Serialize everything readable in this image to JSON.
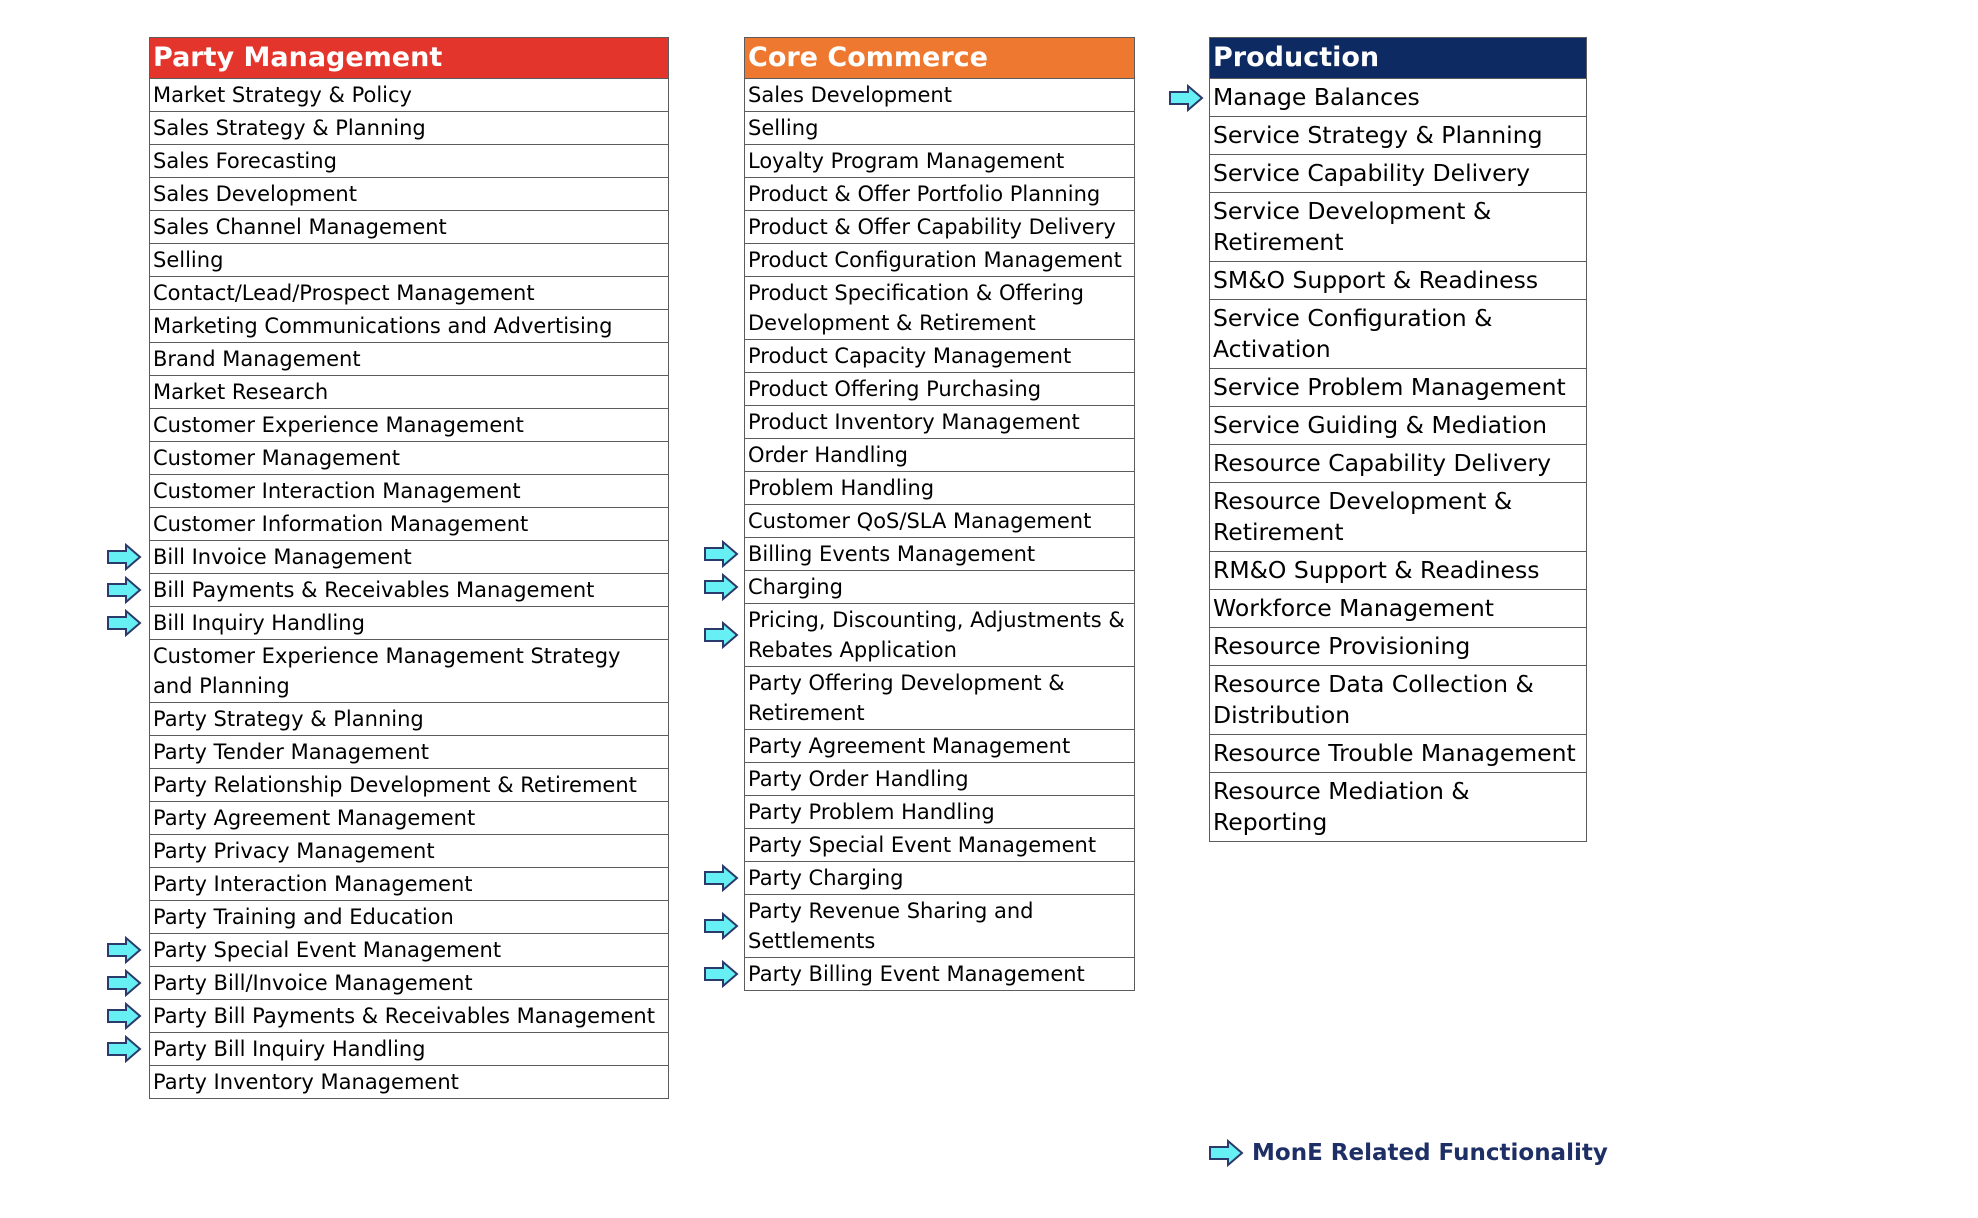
{
  "colors": {
    "party_header": "#e3352b",
    "core_header": "#ef7831",
    "production_header": "#0e2a63",
    "arrow_fill": "#66f0f3",
    "arrow_stroke": "#2b3a6a",
    "legend_text": "#1e2f66"
  },
  "icons": {
    "marker": "right-arrow-icon"
  },
  "panels": [
    {
      "title": "Party Management",
      "items": [
        {
          "label": "Market Strategy & Policy",
          "mone": false
        },
        {
          "label": "Sales Strategy & Planning",
          "mone": false
        },
        {
          "label": "Sales Forecasting",
          "mone": false
        },
        {
          "label": "Sales Development",
          "mone": false
        },
        {
          "label": "Sales Channel Management",
          "mone": false
        },
        {
          "label": "Selling",
          "mone": false
        },
        {
          "label": "Contact/Lead/Prospect Management",
          "mone": false
        },
        {
          "label": "Marketing Communications and Advertising",
          "mone": false
        },
        {
          "label": "Brand Management",
          "mone": false
        },
        {
          "label": "Market Research",
          "mone": false
        },
        {
          "label": "Customer Experience Management",
          "mone": false
        },
        {
          "label": "Customer Management",
          "mone": false
        },
        {
          "label": "Customer Interaction Management",
          "mone": false
        },
        {
          "label": "Customer Information Management",
          "mone": false
        },
        {
          "label": "Bill Invoice Management",
          "mone": true
        },
        {
          "label": "Bill Payments & Receivables Management",
          "mone": true
        },
        {
          "label": "Bill Inquiry Handling",
          "mone": true
        },
        {
          "label": "Customer Experience Management Strategy and Planning",
          "mone": false
        },
        {
          "label": "Party Strategy & Planning",
          "mone": false
        },
        {
          "label": "Party Tender Management",
          "mone": false
        },
        {
          "label": "Party Relationship Development & Retirement",
          "mone": false
        },
        {
          "label": "Party Agreement Management",
          "mone": false
        },
        {
          "label": "Party Privacy Management",
          "mone": false
        },
        {
          "label": "Party Interaction Management",
          "mone": false
        },
        {
          "label": "Party Training and Education",
          "mone": false
        },
        {
          "label": "Party Special Event Management",
          "mone": true
        },
        {
          "label": "Party Bill/Invoice Management",
          "mone": true
        },
        {
          "label": "Party Bill Payments & Receivables Management",
          "mone": true
        },
        {
          "label": "Party Bill Inquiry Handling",
          "mone": true
        },
        {
          "label": "Party Inventory Management",
          "mone": false
        }
      ]
    },
    {
      "title": "Core Commerce",
      "items": [
        {
          "label": "Sales Development",
          "mone": false
        },
        {
          "label": "Selling",
          "mone": false
        },
        {
          "label": "Loyalty Program Management",
          "mone": false
        },
        {
          "label": "Product & Offer Portfolio Planning",
          "mone": false
        },
        {
          "label": "Product & Offer Capability Delivery",
          "mone": false
        },
        {
          "label": "Product Configuration Management",
          "mone": false
        },
        {
          "label": "Product Specification & Offering Development & Retirement",
          "mone": false
        },
        {
          "label": "Product Capacity Management",
          "mone": false
        },
        {
          "label": "Product Offering Purchasing",
          "mone": false
        },
        {
          "label": "Product Inventory Management",
          "mone": false
        },
        {
          "label": "Order Handling",
          "mone": false
        },
        {
          "label": "Problem Handling",
          "mone": false
        },
        {
          "label": "Customer QoS/SLA Management",
          "mone": false
        },
        {
          "label": "Billing Events Management",
          "mone": true
        },
        {
          "label": "Charging",
          "mone": true
        },
        {
          "label": "Pricing, Discounting, Adjustments & Rebates Application",
          "mone": true
        },
        {
          "label": "Party Offering Development & Retirement",
          "mone": false
        },
        {
          "label": "Party Agreement Management",
          "mone": false
        },
        {
          "label": "Party Order Handling",
          "mone": false
        },
        {
          "label": "Party Problem Handling",
          "mone": false
        },
        {
          "label": "Party Special Event Management",
          "mone": false
        },
        {
          "label": "Party Charging",
          "mone": true
        },
        {
          "label": "Party Revenue Sharing and Settlements",
          "mone": true
        },
        {
          "label": "Party Billing Event Management",
          "mone": true
        }
      ]
    },
    {
      "title": "Production",
      "items": [
        {
          "label": "Manage Balances",
          "mone": true
        },
        {
          "label": "Service Strategy & Planning",
          "mone": false
        },
        {
          "label": "Service Capability Delivery",
          "mone": false
        },
        {
          "label": "Service Development & Retirement",
          "mone": false
        },
        {
          "label": "SM&O Support & Readiness",
          "mone": false
        },
        {
          "label": "Service Configuration & Activation",
          "mone": false
        },
        {
          "label": "Service Problem Management",
          "mone": false
        },
        {
          "label": "Service Guiding & Mediation",
          "mone": false
        },
        {
          "label": "Resource Capability Delivery",
          "mone": false
        },
        {
          "label": "Resource Development & Retirement",
          "mone": false
        },
        {
          "label": "RM&O Support & Readiness",
          "mone": false
        },
        {
          "label": "Workforce Management",
          "mone": false
        },
        {
          "label": "Resource Provisioning",
          "mone": false
        },
        {
          "label": "Resource Data Collection & Distribution",
          "mone": false
        },
        {
          "label": "Resource Trouble Management",
          "mone": false
        },
        {
          "label": "Resource Mediation & Reporting",
          "mone": false
        }
      ]
    }
  ],
  "legend": {
    "label": "MonE Related Functionality"
  }
}
